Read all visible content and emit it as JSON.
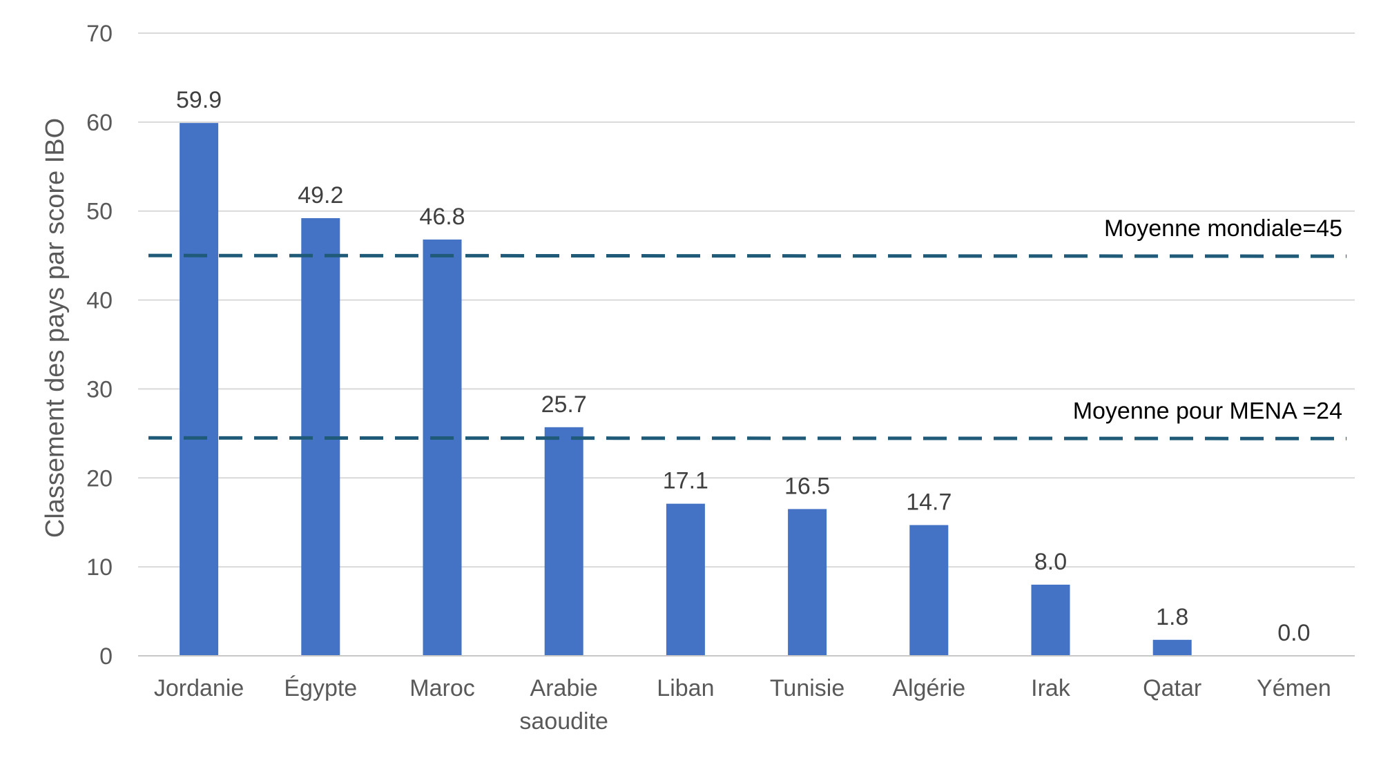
{
  "chart_data": {
    "type": "bar",
    "title": "",
    "xlabel": "",
    "ylabel": "Classement des pays par score IBO",
    "ylim": [
      0,
      70
    ],
    "yticks": [
      0,
      10,
      20,
      30,
      40,
      50,
      60,
      70
    ],
    "grid": true,
    "categories": [
      [
        "Jordanie"
      ],
      [
        "Égypte"
      ],
      [
        "Maroc"
      ],
      [
        "Arabie",
        "saoudite"
      ],
      [
        "Liban"
      ],
      [
        "Tunisie"
      ],
      [
        "Algérie"
      ],
      [
        "Irak"
      ],
      [
        "Qatar"
      ],
      [
        "Yémen"
      ]
    ],
    "values": [
      59.9,
      49.2,
      46.8,
      25.7,
      17.1,
      16.5,
      14.7,
      8.0,
      1.8,
      0.0
    ],
    "data_labels": [
      "59.9",
      "49.2",
      "46.8",
      "25.7",
      "17.1",
      "16.5",
      "14.7",
      "8.0",
      "1.8",
      "0.0"
    ],
    "bar_color": "#4472c4",
    "reference_lines": [
      {
        "label": "Moyenne mondiale=45",
        "value": 45,
        "color": "#1f5b78"
      },
      {
        "label": "Moyenne pour MENA  =24",
        "value": 24.5,
        "color": "#1f5b78"
      }
    ]
  }
}
